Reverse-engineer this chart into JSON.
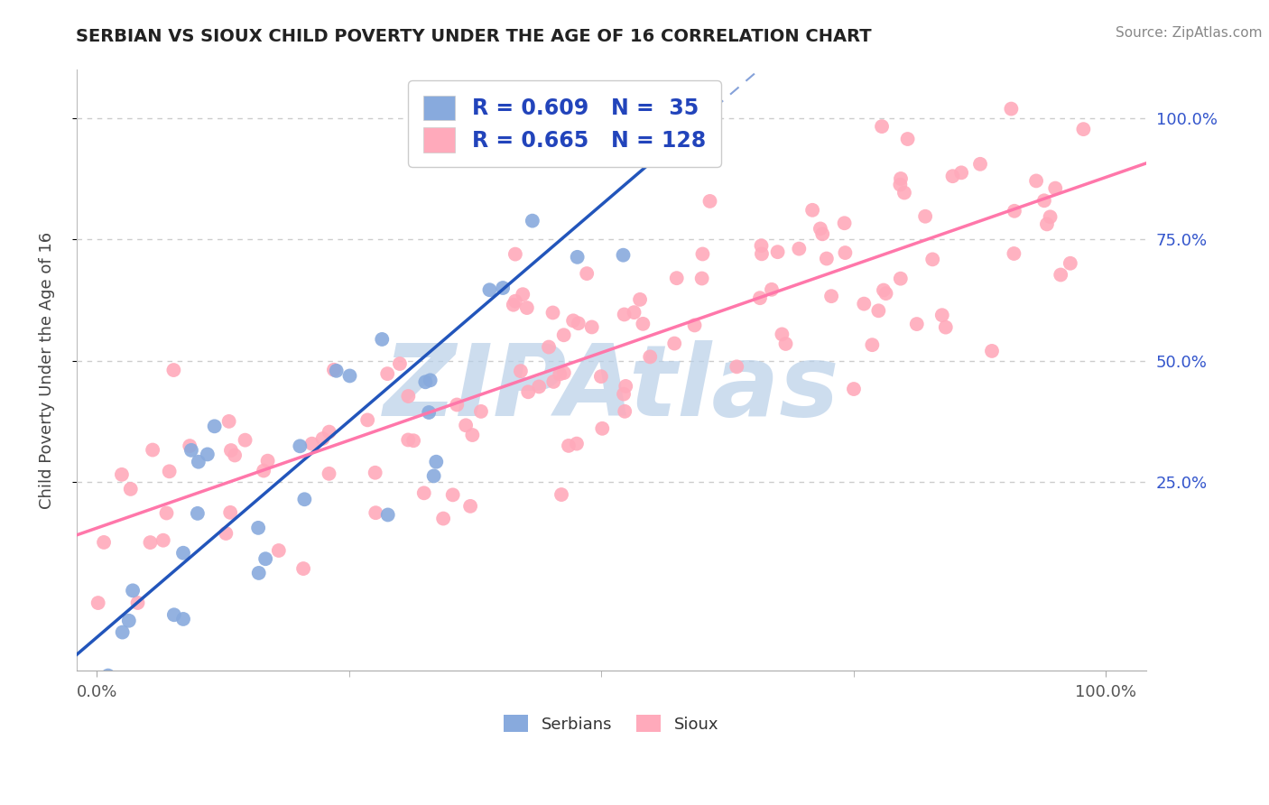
{
  "title": "SERBIAN VS SIOUX CHILD POVERTY UNDER THE AGE OF 16 CORRELATION CHART",
  "source": "Source: ZipAtlas.com",
  "ylabel": "Child Poverty Under the Age of 16",
  "watermark": "ZIPAtlas",
  "legend_serbian": "R = 0.609   N =  35",
  "legend_sioux": "R = 0.665   N = 128",
  "serbian_color": "#88aadd",
  "sioux_color": "#ffaabb",
  "serbian_line_color": "#2255bb",
  "sioux_line_color": "#ff77aa",
  "serbian_R": 0.609,
  "serbian_N": 35,
  "sioux_R": 0.665,
  "sioux_N": 128,
  "bg_color": "#ffffff",
  "grid_color": "#cccccc",
  "title_color": "#222222",
  "watermark_color": "#b8cfe8",
  "legend_text_color": "#2244bb",
  "right_tick_color": "#3355cc",
  "ytick_positions": [
    0.25,
    0.5,
    0.75,
    1.0
  ],
  "ytick_labels": [
    "25.0%",
    "50.0%",
    "75.0%",
    "100.0%"
  ],
  "xtick_positions": [
    0.0,
    1.0
  ],
  "xtick_labels": [
    "0.0%",
    "100.0%"
  ]
}
